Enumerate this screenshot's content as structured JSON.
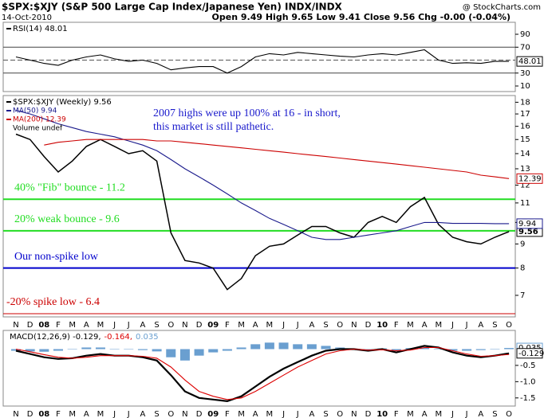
{
  "header": {
    "title": "$SPX:$XJY (S&P 500 Large Cap Index/Japanese Yen) INDX/INDX",
    "source": "@ StockCharts.com",
    "date": "14-Oct-2010",
    "quote": "Open 9.49 High 9.65 Low 9.41 Close 9.56 Chg -0.00 (-0.04%)"
  },
  "chart_data": [
    {
      "type": "line",
      "ylim": [
        1.4,
        108.5
      ],
      "yticks": [
        10,
        30,
        70,
        90
      ],
      "levels": [
        30,
        70
      ],
      "midline": 50,
      "series": [
        {
          "name": "RSI(14) 48.01",
          "color": "#000000",
          "end_label": "48.01",
          "values": [
            55,
            50,
            45,
            42,
            50,
            55,
            58,
            52,
            48,
            50,
            45,
            35,
            38,
            40,
            40,
            30,
            40,
            55,
            60,
            58,
            62,
            60,
            58,
            56,
            55,
            58,
            60,
            58,
            62,
            66,
            50,
            45,
            46,
            45,
            48,
            48.01
          ]
        }
      ]
    },
    {
      "type": "line",
      "log": true,
      "ylim": [
        6.3,
        18.6
      ],
      "yticks": [
        7,
        8,
        9,
        10,
        11,
        12,
        13,
        14,
        15,
        16,
        17,
        18
      ],
      "categories": [
        "N",
        "D",
        "08",
        "F",
        "M",
        "A",
        "M",
        "J",
        "J",
        "A",
        "S",
        "O",
        "N",
        "D",
        "09",
        "F",
        "M",
        "A",
        "M",
        "J",
        "J",
        "A",
        "S",
        "O",
        "N",
        "D",
        "10",
        "F",
        "M",
        "A",
        "M",
        "J",
        "J",
        "A",
        "S",
        "O"
      ],
      "legend_note": "Volume undef",
      "annotation": "2007 highs were up 100% at 16 - in short, this market is still pathetic.",
      "levels": [
        {
          "value": 11.2,
          "text": "40% \"Fib\" bounce - 11.2",
          "color": "#22dd22"
        },
        {
          "value": 9.6,
          "text": "20% weak bounce - 9.6",
          "color": "#22dd22"
        },
        {
          "value": 8,
          "text": "Our non-spike low",
          "color": "#0000cc"
        },
        {
          "value": 6.4,
          "text": "-20% spike low - 6.4",
          "color": "#cc0000"
        }
      ],
      "series": [
        {
          "name": "$SPX:$XJY (Weekly) 9.56",
          "color": "#000000",
          "end_label": "9.56",
          "values": [
            15.4,
            15.0,
            13.8,
            12.8,
            13.5,
            14.5,
            15.0,
            14.5,
            14.0,
            14.2,
            13.5,
            9.5,
            8.3,
            8.2,
            8.0,
            7.2,
            7.6,
            8.5,
            8.9,
            9.0,
            9.4,
            9.8,
            9.8,
            9.5,
            9.3,
            10.0,
            10.3,
            10.0,
            10.8,
            11.3,
            9.9,
            9.3,
            9.1,
            9.0,
            9.3,
            9.56
          ]
        },
        {
          "name": "MA(50) 9.94",
          "color": "#1a1a8c",
          "end_label": "9.94",
          "values": [
            17.3,
            17.0,
            16.6,
            16.2,
            15.9,
            15.6,
            15.4,
            15.2,
            14.9,
            14.6,
            14.2,
            13.6,
            13.0,
            12.5,
            12.0,
            11.5,
            11.0,
            10.6,
            10.2,
            9.9,
            9.6,
            9.3,
            9.2,
            9.2,
            9.3,
            9.4,
            9.5,
            9.6,
            9.8,
            10.0,
            10.0,
            9.95,
            9.95,
            9.95,
            9.94,
            9.94
          ]
        },
        {
          "name": "MA(200) 12.39",
          "color": "#cc0000",
          "end_label": "12.39",
          "values": [
            null,
            null,
            14.6,
            14.8,
            14.9,
            15.0,
            15.0,
            15.0,
            15.0,
            15.0,
            14.9,
            14.9,
            14.8,
            14.7,
            14.6,
            14.5,
            14.4,
            14.3,
            14.2,
            14.1,
            14.0,
            13.9,
            13.8,
            13.7,
            13.6,
            13.5,
            13.4,
            13.3,
            13.2,
            13.1,
            13.0,
            12.9,
            12.8,
            12.6,
            12.5,
            12.39
          ]
        }
      ]
    },
    {
      "type": "line",
      "ylim": [
        -1.75,
        0.575
      ],
      "yticks": [
        {
          "value": -1.5,
          "label": "-1.5"
        },
        {
          "value": -1,
          "label": "-1.0"
        },
        {
          "value": -0.5,
          "label": "-0.5"
        }
      ],
      "categories": [
        "N",
        "D",
        "08",
        "F",
        "M",
        "A",
        "M",
        "J",
        "J",
        "A",
        "S",
        "O",
        "N",
        "D",
        "09",
        "F",
        "M",
        "A",
        "M",
        "J",
        "J",
        "A",
        "S",
        "O",
        "N",
        "D",
        "10",
        "F",
        "M",
        "A",
        "M",
        "J",
        "J",
        "A",
        "S",
        "O"
      ],
      "series": [
        {
          "name": "0.035",
          "type": "bar",
          "color": "#6a9fd0",
          "end_label": "0.035",
          "values": [
            -0.05,
            -0.07,
            -0.08,
            -0.05,
            0.0,
            0.05,
            0.05,
            0.0,
            0.0,
            -0.03,
            -0.07,
            -0.25,
            -0.35,
            -0.2,
            -0.1,
            -0.05,
            0.05,
            0.15,
            0.2,
            0.2,
            0.15,
            0.15,
            0.1,
            0.05,
            0.0,
            -0.02,
            0.02,
            -0.05,
            0.03,
            0.05,
            0.0,
            -0.05,
            -0.05,
            -0.03,
            0.0,
            0.035
          ]
        },
        {
          "name": "MACD(12,26,9) -0.129,",
          "color": "#000000",
          "end_label": "-0.129",
          "values": [
            -0.05,
            -0.15,
            -0.25,
            -0.3,
            -0.28,
            -0.2,
            -0.15,
            -0.2,
            -0.2,
            -0.25,
            -0.35,
            -0.8,
            -1.3,
            -1.5,
            -1.55,
            -1.6,
            -1.45,
            -1.15,
            -0.85,
            -0.6,
            -0.4,
            -0.2,
            -0.05,
            0.0,
            0.0,
            -0.05,
            0.0,
            -0.1,
            0.0,
            0.1,
            0.05,
            -0.1,
            -0.2,
            -0.25,
            -0.2,
            -0.129
          ]
        },
        {
          "name": "-0.164,",
          "color": "#dd0000",
          "values": [
            0.0,
            -0.08,
            -0.17,
            -0.25,
            -0.28,
            -0.25,
            -0.2,
            -0.2,
            -0.2,
            -0.22,
            -0.28,
            -0.55,
            -0.95,
            -1.3,
            -1.45,
            -1.55,
            -1.5,
            -1.3,
            -1.05,
            -0.8,
            -0.55,
            -0.35,
            -0.15,
            -0.05,
            0.0,
            -0.03,
            -0.02,
            -0.05,
            -0.03,
            0.05,
            0.05,
            -0.05,
            -0.15,
            -0.22,
            -0.2,
            -0.164
          ]
        }
      ]
    }
  ]
}
